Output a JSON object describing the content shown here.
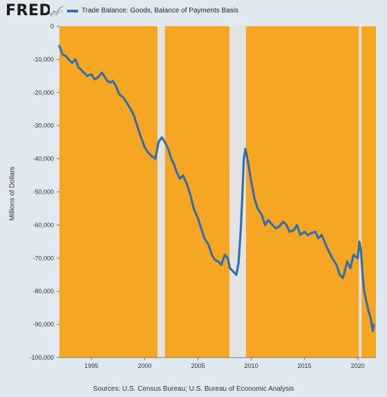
{
  "header": {
    "logo_text": "FRED",
    "logo_icon": "fred-chart-logo-icon",
    "legend_label": "Trade Balance: Goods, Balance of Payments Basis"
  },
  "source_text": "Sources: U.S. Census Bureau; U.S. Bureau of Economic Analysis",
  "chart_data": {
    "type": "line",
    "title": "",
    "xlabel": "",
    "ylabel": "Millions of Dollars",
    "xlim": [
      1992.0,
      2021.7
    ],
    "ylim": [
      -100000,
      0
    ],
    "x_ticks": [
      "1995",
      "2000",
      "2005",
      "2010",
      "2015",
      "2020"
    ],
    "y_ticks": [
      "0",
      "-10,000",
      "-20,000",
      "-30,000",
      "-40,000",
      "-50,000",
      "-60,000",
      "-70,000",
      "-80,000",
      "-90,000",
      "-100,000"
    ],
    "grid": false,
    "legend_placement": "top-left",
    "colors": {
      "background": "#f5a623",
      "line": "#3a6da8",
      "recession": "#e3e3e3",
      "page": "#e1e9f0"
    },
    "recessions": [
      [
        2001.2,
        2001.9
      ],
      [
        2007.95,
        2009.5
      ],
      [
        2020.1,
        2020.35
      ]
    ],
    "series": [
      {
        "name": "Trade Balance: Goods, Balance of Payments Basis",
        "x": [
          1992.0,
          1992.3,
          1992.6,
          1993.0,
          1993.2,
          1993.5,
          1993.8,
          1994.0,
          1994.3,
          1994.6,
          1995.0,
          1995.3,
          1995.6,
          1996.0,
          1996.2,
          1996.5,
          1996.8,
          1997.0,
          1997.3,
          1997.6,
          1998.0,
          1998.3,
          1998.6,
          1999.0,
          1999.3,
          1999.6,
          2000.0,
          2000.3,
          2000.6,
          2001.0,
          2001.3,
          2001.6,
          2001.9,
          2002.2,
          2002.5,
          2002.8,
          2003.0,
          2003.3,
          2003.6,
          2004.0,
          2004.3,
          2004.6,
          2005.0,
          2005.3,
          2005.6,
          2006.0,
          2006.3,
          2006.6,
          2006.9,
          2007.2,
          2007.5,
          2007.8,
          2008.0,
          2008.3,
          2008.6,
          2008.8,
          2009.0,
          2009.15,
          2009.3,
          2009.45,
          2009.7,
          2010.0,
          2010.3,
          2010.6,
          2011.0,
          2011.3,
          2011.6,
          2012.0,
          2012.3,
          2012.6,
          2013.0,
          2013.3,
          2013.6,
          2014.0,
          2014.3,
          2014.6,
          2015.0,
          2015.3,
          2015.6,
          2016.0,
          2016.3,
          2016.6,
          2017.0,
          2017.3,
          2017.6,
          2018.0,
          2018.3,
          2018.6,
          2019.0,
          2019.3,
          2019.6,
          2020.0,
          2020.15,
          2020.3,
          2020.45,
          2020.6,
          2020.8,
          2021.0,
          2021.2,
          2021.4,
          2021.5
        ],
        "values": [
          -6000,
          -8500,
          -9000,
          -10500,
          -11000,
          -10000,
          -12500,
          -13000,
          -14000,
          -15000,
          -14500,
          -16000,
          -15500,
          -14000,
          -15000,
          -16500,
          -17000,
          -16500,
          -18000,
          -20500,
          -21500,
          -23000,
          -24500,
          -27000,
          -30000,
          -33000,
          -36500,
          -38000,
          -39000,
          -40000,
          -35000,
          -33500,
          -35000,
          -37000,
          -40000,
          -42000,
          -44000,
          -46000,
          -45000,
          -48000,
          -51000,
          -55000,
          -58000,
          -61000,
          -64000,
          -66000,
          -69000,
          -70500,
          -71000,
          -72000,
          -69000,
          -70000,
          -73000,
          -74000,
          -75000,
          -71500,
          -62000,
          -52000,
          -40000,
          -37000,
          -41000,
          -47000,
          -52000,
          -55000,
          -57000,
          -60000,
          -58500,
          -60000,
          -61000,
          -60500,
          -59000,
          -60000,
          -62000,
          -61500,
          -60000,
          -63000,
          -62000,
          -63000,
          -62500,
          -62000,
          -64000,
          -63000,
          -66000,
          -68000,
          -70000,
          -72000,
          -75000,
          -76000,
          -71000,
          -73000,
          -69000,
          -70000,
          -65000,
          -68000,
          -75000,
          -80000,
          -83000,
          -86000,
          -88000,
          -92000,
          -90000
        ]
      }
    ]
  }
}
